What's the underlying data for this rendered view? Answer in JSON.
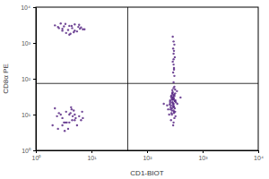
{
  "chart_data": {
    "type": "scatter",
    "log": true,
    "color": "#5b2a86",
    "marker": "dot",
    "x_label": "CD1-BIOT",
    "y_label": "CD8α PE",
    "xlim": [
      1,
      10000
    ],
    "ylim": [
      1,
      10000
    ],
    "xticks": [
      {
        "value": 1,
        "label": "10⁰"
      },
      {
        "value": 10,
        "label": "10¹"
      },
      {
        "value": 100,
        "label": "10²"
      },
      {
        "value": 1000,
        "label": "10³"
      },
      {
        "value": 10000,
        "label": "10⁴"
      }
    ],
    "yticks": [
      {
        "value": 1,
        "label": "10⁰"
      },
      {
        "value": 10,
        "label": "10¹"
      },
      {
        "value": 100,
        "label": "10²"
      },
      {
        "value": 1000,
        "label": "10³"
      },
      {
        "value": 10000,
        "label": "10⁴"
      }
    ],
    "gates": {
      "x": 45,
      "y": 74
    },
    "x": [
      3,
      4,
      5,
      2.5,
      6,
      3.5,
      4.5,
      7,
      2.8,
      5.5,
      3.2,
      4.2,
      6.5,
      2.2,
      5,
      3.8,
      4.8,
      2.6,
      6.2,
      3.4,
      4,
      5.8,
      3,
      4.4,
      7.5,
      2,
      3,
      4,
      5,
      2.5,
      3.5,
      4.5,
      6,
      2.2,
      3.2,
      4.2,
      5.5,
      7,
      2.8,
      3.8,
      4.8,
      6.5,
      2.4,
      3.4,
      4.4,
      5.2,
      3,
      4,
      5,
      2.6,
      3.6,
      4.6,
      6.8,
      3.3,
      4.3,
      250,
      280,
      300,
      320,
      260,
      290,
      310,
      270,
      330,
      240,
      300,
      285,
      295,
      305,
      275,
      265,
      315,
      325,
      255,
      345,
      300,
      290,
      310,
      280,
      270,
      320,
      260,
      300,
      295,
      285,
      350,
      230,
      305,
      275,
      315,
      290,
      300,
      310,
      280,
      265,
      325,
      295,
      285,
      300,
      270,
      305,
      290,
      315,
      260,
      280,
      400,
      200,
      310,
      295,
      300,
      285,
      275,
      305,
      320,
      290,
      300,
      310,
      295,
      305,
      300,
      290,
      315,
      300,
      305,
      295,
      310,
      300,
      290,
      305,
      300
    ],
    "values": [
      2500,
      3000,
      2200,
      2800,
      3200,
      1900,
      2600,
      2400,
      3500,
      2100,
      2900,
      1800,
      2700,
      3100,
      3300,
      2300,
      2000,
      2600,
      2500,
      3400,
      1700,
      2800,
      2200,
      3000,
      2400,
      5,
      8,
      6,
      10,
      4,
      12,
      7,
      9,
      15,
      6,
      11,
      5,
      8,
      10,
      4,
      13,
      7,
      9,
      6,
      14,
      8,
      5,
      10,
      7,
      11,
      6,
      9,
      12,
      3.5,
      16,
      10,
      15,
      20,
      12,
      25,
      30,
      8,
      18,
      22,
      14,
      35,
      40,
      17,
      28,
      11,
      16,
      24,
      9,
      19,
      45,
      13,
      21,
      33,
      26,
      7,
      50,
      23,
      27,
      31,
      38,
      20,
      18,
      12,
      29,
      15,
      42,
      55,
      36,
      10,
      14,
      25,
      19,
      22,
      16,
      32,
      11,
      27,
      24,
      21,
      13,
      30,
      20,
      60,
      5,
      6,
      48,
      34,
      17,
      39,
      26,
      80,
      120,
      150,
      200,
      250,
      300,
      400,
      500,
      600,
      700,
      900,
      1100,
      1500,
      180,
      350
    ]
  }
}
